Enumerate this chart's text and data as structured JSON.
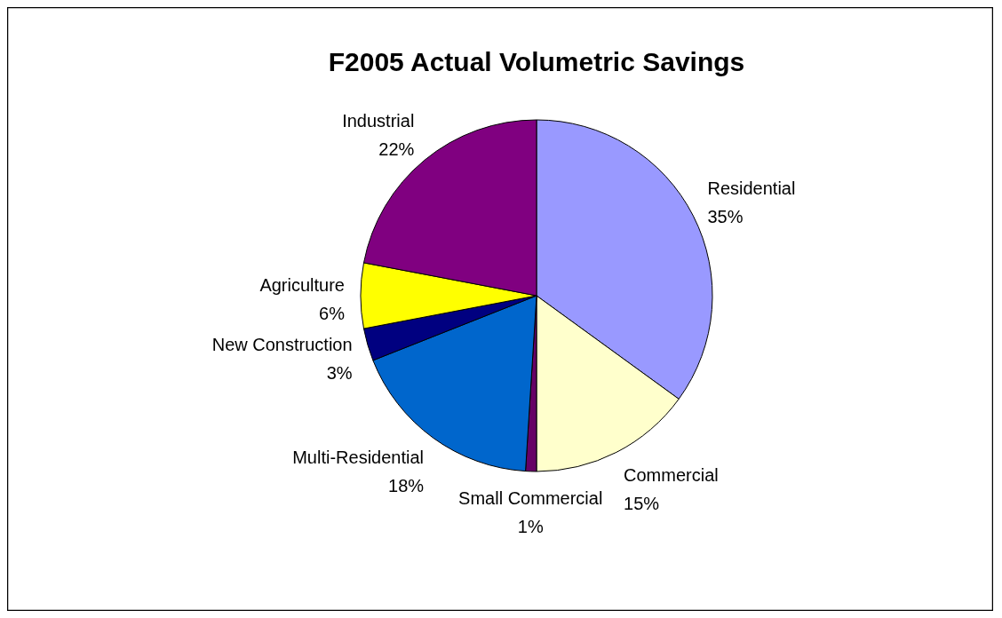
{
  "chart_data": {
    "type": "pie",
    "title": "F2005 Actual Volumetric Savings",
    "categories": [
      "Residential",
      "Commercial",
      "Small Commercial",
      "Multi-Residential",
      "New Construction",
      "Agriculture",
      "Industrial"
    ],
    "values": [
      35,
      15,
      1,
      18,
      3,
      6,
      22
    ],
    "colors": [
      "#9999ff",
      "#ffffcc",
      "#660066",
      "#0066cc",
      "#000080",
      "#ffff00",
      "#800080"
    ],
    "value_labels": [
      "35%",
      "15%",
      "1%",
      "18%",
      "3%",
      "6%",
      "22%"
    ],
    "legend": false
  }
}
